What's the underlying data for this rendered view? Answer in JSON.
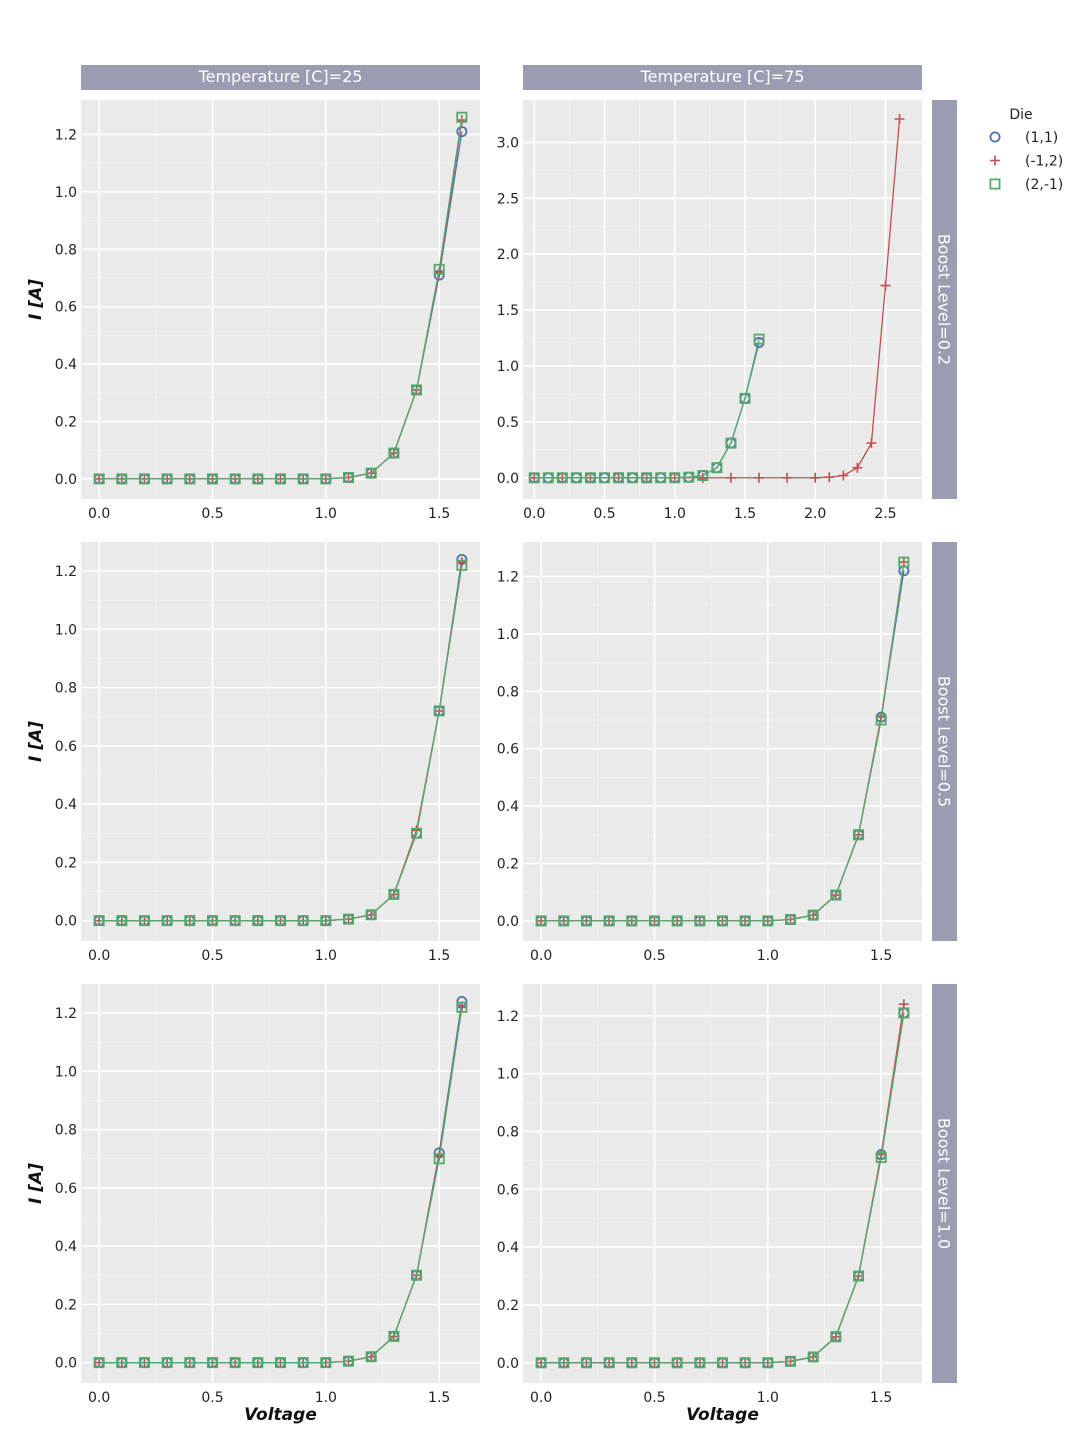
{
  "chart_data": {
    "type": "line",
    "facet_cols": {
      "label": "Temperature [C]",
      "values": [
        "Temperature [C]=25",
        "Temperature [C]=75"
      ]
    },
    "facet_rows": {
      "label": "Boost Level",
      "values": [
        "Boost Level=0.2",
        "Boost Level=0.5",
        "Boost Level=1.0"
      ]
    },
    "xlabel": "Voltage",
    "ylabel": "I [A]",
    "grid": true,
    "legend": {
      "title": "Die",
      "placement": "top-right",
      "entries": [
        {
          "name": "(1,1)",
          "marker": "circle",
          "color": "#4c72b0"
        },
        {
          "name": "(-1,2)",
          "marker": "plus",
          "color": "#c44e52"
        },
        {
          "name": "(2,-1)",
          "marker": "square",
          "color": "#55a868"
        }
      ]
    },
    "colors": {
      "panel_bg": "#eaeaea",
      "strip_bg": "#9a9cb2",
      "strip_text": "#ffffff",
      "grid": "#ffffff"
    },
    "panels": [
      {
        "row": 0,
        "col": 0,
        "xlim": [
          -0.08,
          1.68
        ],
        "ylim": [
          -0.07,
          1.32
        ],
        "xticks": [
          0.0,
          0.5,
          1.0,
          1.5
        ],
        "xtick_labels": [
          "0.0",
          "0.5",
          "1.0",
          "1.5"
        ],
        "yticks": [
          0.0,
          0.2,
          0.4,
          0.6,
          0.8,
          1.0,
          1.2
        ],
        "ytick_labels": [
          "0.0",
          "0.2",
          "0.4",
          "0.6",
          "0.8",
          "1.0",
          "1.2"
        ],
        "series": [
          {
            "name": "(1,1)",
            "x": [
              0.0,
              0.1,
              0.2,
              0.3,
              0.4,
              0.5,
              0.6,
              0.7,
              0.8,
              0.9,
              1.0,
              1.1,
              1.2,
              1.3,
              1.4,
              1.5,
              1.6
            ],
            "y": [
              0,
              0,
              0,
              0,
              0,
              0,
              0,
              0,
              0,
              0,
              0,
              0.005,
              0.02,
              0.09,
              0.31,
              0.71,
              1.21
            ]
          },
          {
            "name": "(-1,2)",
            "x": [
              0.0,
              0.1,
              0.2,
              0.3,
              0.4,
              0.5,
              0.6,
              0.7,
              0.8,
              0.9,
              1.0,
              1.1,
              1.2,
              1.3,
              1.4,
              1.5,
              1.6
            ],
            "y": [
              0,
              0,
              0,
              0,
              0,
              0,
              0,
              0,
              0,
              0,
              0,
              0.005,
              0.02,
              0.09,
              0.31,
              0.72,
              1.25
            ]
          },
          {
            "name": "(2,-1)",
            "x": [
              0.0,
              0.1,
              0.2,
              0.3,
              0.4,
              0.5,
              0.6,
              0.7,
              0.8,
              0.9,
              1.0,
              1.1,
              1.2,
              1.3,
              1.4,
              1.5,
              1.6
            ],
            "y": [
              0,
              0,
              0,
              0,
              0,
              0,
              0,
              0,
              0,
              0,
              0,
              0.005,
              0.02,
              0.09,
              0.31,
              0.73,
              1.26
            ]
          }
        ]
      },
      {
        "row": 0,
        "col": 1,
        "xlim": [
          -0.08,
          2.76
        ],
        "ylim": [
          -0.19,
          3.38
        ],
        "xticks": [
          0.0,
          0.5,
          1.0,
          1.5,
          2.0,
          2.5
        ],
        "xtick_labels": [
          "0.0",
          "0.5",
          "1.0",
          "1.5",
          "2.0",
          "2.5"
        ],
        "yticks": [
          0.0,
          0.5,
          1.0,
          1.5,
          2.0,
          2.5,
          3.0
        ],
        "ytick_labels": [
          "0.0",
          "0.5",
          "1.0",
          "1.5",
          "2.0",
          "2.5",
          "3.0"
        ],
        "series": [
          {
            "name": "(1,1)",
            "x": [
              0.0,
              0.1,
              0.2,
              0.3,
              0.4,
              0.5,
              0.6,
              0.7,
              0.8,
              0.9,
              1.0,
              1.1,
              1.2,
              1.3,
              1.4,
              1.5,
              1.6
            ],
            "y": [
              0,
              0,
              0,
              0,
              0,
              0,
              0,
              0,
              0,
              0,
              0,
              0.005,
              0.02,
              0.09,
              0.31,
              0.71,
              1.21
            ]
          },
          {
            "name": "(-1,2)",
            "x": [
              0.0,
              0.2,
              0.4,
              0.6,
              0.8,
              1.0,
              1.2,
              1.4,
              1.6,
              1.8,
              2.0,
              2.1,
              2.2,
              2.3,
              2.4,
              2.5,
              2.6
            ],
            "y": [
              0,
              0,
              0,
              0,
              0,
              0,
              0,
              0,
              0,
              0,
              0,
              0.005,
              0.02,
              0.09,
              0.31,
              1.72,
              3.21
            ]
          },
          {
            "name": "(2,-1)",
            "x": [
              0.0,
              0.1,
              0.2,
              0.3,
              0.4,
              0.5,
              0.6,
              0.7,
              0.8,
              0.9,
              1.0,
              1.1,
              1.2,
              1.3,
              1.4,
              1.5,
              1.6
            ],
            "y": [
              0,
              0,
              0,
              0,
              0,
              0,
              0,
              0,
              0,
              0,
              0,
              0.005,
              0.02,
              0.09,
              0.31,
              0.71,
              1.24
            ]
          }
        ]
      },
      {
        "row": 1,
        "col": 0,
        "xlim": [
          -0.08,
          1.68
        ],
        "ylim": [
          -0.07,
          1.3
        ],
        "xticks": [
          0.0,
          0.5,
          1.0,
          1.5
        ],
        "xtick_labels": [
          "0.0",
          "0.5",
          "1.0",
          "1.5"
        ],
        "yticks": [
          0.0,
          0.2,
          0.4,
          0.6,
          0.8,
          1.0,
          1.2
        ],
        "ytick_labels": [
          "0.0",
          "0.2",
          "0.4",
          "0.6",
          "0.8",
          "1.0",
          "1.2"
        ],
        "series": [
          {
            "name": "(1,1)",
            "x": [
              0.0,
              0.1,
              0.2,
              0.3,
              0.4,
              0.5,
              0.6,
              0.7,
              0.8,
              0.9,
              1.0,
              1.1,
              1.2,
              1.3,
              1.4,
              1.5,
              1.6
            ],
            "y": [
              0,
              0,
              0,
              0,
              0,
              0,
              0,
              0,
              0,
              0,
              0,
              0.005,
              0.02,
              0.09,
              0.3,
              0.72,
              1.24
            ]
          },
          {
            "name": "(-1,2)",
            "x": [
              0.0,
              0.1,
              0.2,
              0.3,
              0.4,
              0.5,
              0.6,
              0.7,
              0.8,
              0.9,
              1.0,
              1.1,
              1.2,
              1.3,
              1.4,
              1.5,
              1.6
            ],
            "y": [
              0,
              0,
              0,
              0,
              0,
              0,
              0,
              0,
              0,
              0,
              0,
              0.005,
              0.02,
              0.09,
              0.31,
              0.72,
              1.23
            ]
          },
          {
            "name": "(2,-1)",
            "x": [
              0.0,
              0.1,
              0.2,
              0.3,
              0.4,
              0.5,
              0.6,
              0.7,
              0.8,
              0.9,
              1.0,
              1.1,
              1.2,
              1.3,
              1.4,
              1.5,
              1.6
            ],
            "y": [
              0,
              0,
              0,
              0,
              0,
              0,
              0,
              0,
              0,
              0,
              0,
              0.005,
              0.02,
              0.09,
              0.3,
              0.72,
              1.22
            ]
          }
        ]
      },
      {
        "row": 1,
        "col": 1,
        "xlim": [
          -0.08,
          1.68
        ],
        "ylim": [
          -0.07,
          1.32
        ],
        "xticks": [
          0.0,
          0.5,
          1.0,
          1.5
        ],
        "xtick_labels": [
          "0.0",
          "0.5",
          "1.0",
          "1.5"
        ],
        "yticks": [
          0.0,
          0.2,
          0.4,
          0.6,
          0.8,
          1.0,
          1.2
        ],
        "ytick_labels": [
          "0.0",
          "0.2",
          "0.4",
          "0.6",
          "0.8",
          "1.0",
          "1.2"
        ],
        "series": [
          {
            "name": "(1,1)",
            "x": [
              0.0,
              0.1,
              0.2,
              0.3,
              0.4,
              0.5,
              0.6,
              0.7,
              0.8,
              0.9,
              1.0,
              1.1,
              1.2,
              1.3,
              1.4,
              1.5,
              1.6
            ],
            "y": [
              0,
              0,
              0,
              0,
              0,
              0,
              0,
              0,
              0,
              0,
              0,
              0.005,
              0.02,
              0.09,
              0.3,
              0.71,
              1.22
            ]
          },
          {
            "name": "(-1,2)",
            "x": [
              0.0,
              0.1,
              0.2,
              0.3,
              0.4,
              0.5,
              0.6,
              0.7,
              0.8,
              0.9,
              1.0,
              1.1,
              1.2,
              1.3,
              1.4,
              1.5,
              1.6
            ],
            "y": [
              0,
              0,
              0,
              0,
              0,
              0,
              0,
              0,
              0,
              0,
              0,
              0.005,
              0.02,
              0.09,
              0.3,
              0.71,
              1.25
            ]
          },
          {
            "name": "(2,-1)",
            "x": [
              0.0,
              0.1,
              0.2,
              0.3,
              0.4,
              0.5,
              0.6,
              0.7,
              0.8,
              0.9,
              1.0,
              1.1,
              1.2,
              1.3,
              1.4,
              1.5,
              1.6
            ],
            "y": [
              0,
              0,
              0,
              0,
              0,
              0,
              0,
              0,
              0,
              0,
              0,
              0.005,
              0.02,
              0.09,
              0.3,
              0.7,
              1.25
            ]
          }
        ]
      },
      {
        "row": 2,
        "col": 0,
        "xlim": [
          -0.08,
          1.68
        ],
        "ylim": [
          -0.07,
          1.3
        ],
        "xticks": [
          0.0,
          0.5,
          1.0,
          1.5
        ],
        "xtick_labels": [
          "0.0",
          "0.5",
          "1.0",
          "1.5"
        ],
        "yticks": [
          0.0,
          0.2,
          0.4,
          0.6,
          0.8,
          1.0,
          1.2
        ],
        "ytick_labels": [
          "0.0",
          "0.2",
          "0.4",
          "0.6",
          "0.8",
          "1.0",
          "1.2"
        ],
        "series": [
          {
            "name": "(1,1)",
            "x": [
              0.0,
              0.1,
              0.2,
              0.3,
              0.4,
              0.5,
              0.6,
              0.7,
              0.8,
              0.9,
              1.0,
              1.1,
              1.2,
              1.3,
              1.4,
              1.5,
              1.6
            ],
            "y": [
              0,
              0,
              0,
              0,
              0,
              0,
              0,
              0,
              0,
              0,
              0,
              0.005,
              0.02,
              0.09,
              0.3,
              0.72,
              1.24
            ]
          },
          {
            "name": "(-1,2)",
            "x": [
              0.0,
              0.1,
              0.2,
              0.3,
              0.4,
              0.5,
              0.6,
              0.7,
              0.8,
              0.9,
              1.0,
              1.1,
              1.2,
              1.3,
              1.4,
              1.5,
              1.6
            ],
            "y": [
              0,
              0,
              0,
              0,
              0,
              0,
              0,
              0,
              0,
              0,
              0,
              0.005,
              0.02,
              0.09,
              0.3,
              0.71,
              1.22
            ]
          },
          {
            "name": "(2,-1)",
            "x": [
              0.0,
              0.1,
              0.2,
              0.3,
              0.4,
              0.5,
              0.6,
              0.7,
              0.8,
              0.9,
              1.0,
              1.1,
              1.2,
              1.3,
              1.4,
              1.5,
              1.6
            ],
            "y": [
              0,
              0,
              0,
              0,
              0,
              0,
              0,
              0,
              0,
              0,
              0,
              0.005,
              0.02,
              0.09,
              0.3,
              0.7,
              1.22
            ]
          }
        ]
      },
      {
        "row": 2,
        "col": 1,
        "xlim": [
          -0.08,
          1.68
        ],
        "ylim": [
          -0.07,
          1.31
        ],
        "xticks": [
          0.0,
          0.5,
          1.0,
          1.5
        ],
        "xtick_labels": [
          "0.0",
          "0.5",
          "1.0",
          "1.5"
        ],
        "yticks": [
          0.0,
          0.2,
          0.4,
          0.6,
          0.8,
          1.0,
          1.2
        ],
        "ytick_labels": [
          "0.0",
          "0.2",
          "0.4",
          "0.6",
          "0.8",
          "1.0",
          "1.2"
        ],
        "series": [
          {
            "name": "(1,1)",
            "x": [
              0.0,
              0.1,
              0.2,
              0.3,
              0.4,
              0.5,
              0.6,
              0.7,
              0.8,
              0.9,
              1.0,
              1.1,
              1.2,
              1.3,
              1.4,
              1.5,
              1.6
            ],
            "y": [
              0,
              0,
              0,
              0,
              0,
              0,
              0,
              0,
              0,
              0,
              0,
              0.005,
              0.02,
              0.09,
              0.3,
              0.72,
              1.21
            ]
          },
          {
            "name": "(-1,2)",
            "x": [
              0.0,
              0.1,
              0.2,
              0.3,
              0.4,
              0.5,
              0.6,
              0.7,
              0.8,
              0.9,
              1.0,
              1.1,
              1.2,
              1.3,
              1.4,
              1.5,
              1.6
            ],
            "y": [
              0,
              0,
              0,
              0,
              0,
              0,
              0,
              0,
              0,
              0,
              0,
              0.005,
              0.02,
              0.09,
              0.3,
              0.72,
              1.24
            ]
          },
          {
            "name": "(2,-1)",
            "x": [
              0.0,
              0.1,
              0.2,
              0.3,
              0.4,
              0.5,
              0.6,
              0.7,
              0.8,
              0.9,
              1.0,
              1.1,
              1.2,
              1.3,
              1.4,
              1.5,
              1.6
            ],
            "y": [
              0,
              0,
              0,
              0,
              0,
              0,
              0,
              0,
              0,
              0,
              0,
              0.005,
              0.02,
              0.09,
              0.3,
              0.71,
              1.21
            ]
          }
        ]
      }
    ]
  }
}
